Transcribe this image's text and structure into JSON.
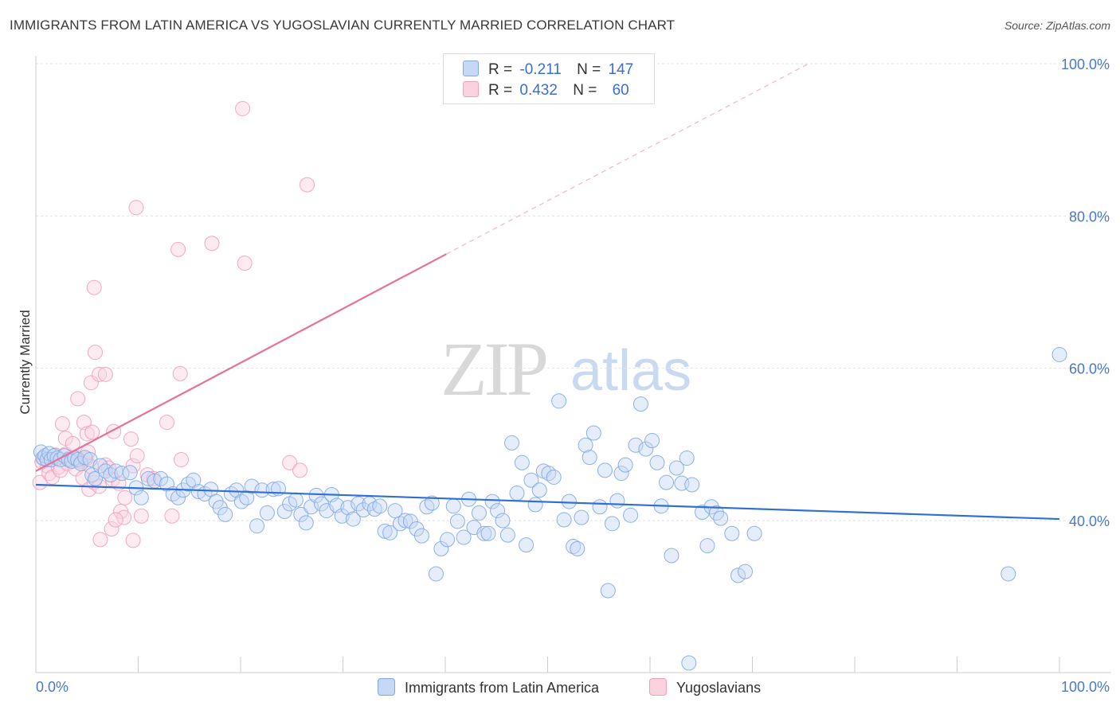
{
  "title": "IMMIGRANTS FROM LATIN AMERICA VS YUGOSLAVIAN CURRENTLY MARRIED CORRELATION CHART",
  "source": "Source: ZipAtlas.com",
  "watermark": {
    "zip": "ZIP",
    "atlas": "atlas"
  },
  "legend": {
    "r_label": "R =",
    "n_label": "N =",
    "rows": [
      {
        "name": "Immigrants from Latin America",
        "r": "-0.211",
        "n": "147",
        "color": "#7fa8e6"
      },
      {
        "name": "Yugoslavians",
        "r": "0.432",
        "n": "60",
        "color": "#f2a0b8"
      }
    ]
  },
  "bottom_legend": [
    "Immigrants from Latin America",
    "Yugoslavians"
  ],
  "chart_data": {
    "type": "scatter",
    "title": "IMMIGRANTS FROM LATIN AMERICA VS YUGOSLAVIAN CURRENTLY MARRIED CORRELATION CHART",
    "xlabel": "",
    "ylabel": "Currently Married",
    "xlim": [
      0,
      100
    ],
    "ylim": [
      20,
      102
    ],
    "x_tick_labels": [
      "0.0%",
      "100.0%"
    ],
    "y_ticks": [
      40,
      60,
      80,
      100
    ],
    "y_tick_labels": [
      "40.0%",
      "60.0%",
      "80.0%",
      "100.0%"
    ],
    "grid": true,
    "legend_position": "top-center",
    "colors": {
      "blue": "#7fa8e6",
      "blue_line": "#2f6fd6",
      "pink": "#f2a0b8",
      "pink_line": "#e8709a"
    },
    "series": [
      {
        "name": "Immigrants from Latin America",
        "color": "#7fa8e6",
        "trend": {
          "x0": 0,
          "y0": 44.7,
          "x1": 100,
          "y1": 40.2
        },
        "points": [
          [
            0.5,
            49
          ],
          [
            0.7,
            48.2
          ],
          [
            0.9,
            48.5
          ],
          [
            1.1,
            48
          ],
          [
            1.3,
            48.8
          ],
          [
            1.5,
            48
          ],
          [
            1.8,
            48.5
          ],
          [
            2.1,
            48.2
          ],
          [
            2.4,
            48
          ],
          [
            2.8,
            48.5
          ],
          [
            3.2,
            48
          ],
          [
            3.5,
            47.8
          ],
          [
            3.8,
            48.2
          ],
          [
            4.1,
            48
          ],
          [
            4.4,
            47.5
          ],
          [
            4.8,
            48.3
          ],
          [
            5.3,
            48
          ],
          [
            5.5,
            46
          ],
          [
            5.8,
            45.5
          ],
          [
            6.3,
            47.2
          ],
          [
            6.8,
            46.5
          ],
          [
            7.3,
            46
          ],
          [
            7.8,
            46.5
          ],
          [
            8.4,
            46.2
          ],
          [
            9.2,
            46.3
          ],
          [
            9.8,
            44.3
          ],
          [
            10.3,
            43
          ],
          [
            11,
            45.5
          ],
          [
            11.6,
            45.2
          ],
          [
            12.2,
            45.5
          ],
          [
            12.8,
            44.8
          ],
          [
            13.4,
            43.5
          ],
          [
            13.9,
            43
          ],
          [
            14.4,
            44
          ],
          [
            14.9,
            44.8
          ],
          [
            15.4,
            45.3
          ],
          [
            15.9,
            43.8
          ],
          [
            16.5,
            43.5
          ],
          [
            17.1,
            44.1
          ],
          [
            17.6,
            42.5
          ],
          [
            18,
            41.7
          ],
          [
            18.5,
            40.8
          ],
          [
            19.1,
            43.5
          ],
          [
            19.6,
            44
          ],
          [
            20.1,
            42.5
          ],
          [
            20.6,
            43
          ],
          [
            21.1,
            44.5
          ],
          [
            21.6,
            39.3
          ],
          [
            22.1,
            44
          ],
          [
            22.6,
            41
          ],
          [
            23.2,
            44.1
          ],
          [
            23.7,
            44.2
          ],
          [
            24.3,
            41.2
          ],
          [
            24.8,
            42.2
          ],
          [
            25.4,
            42.7
          ],
          [
            25.9,
            40.8
          ],
          [
            26.4,
            39.7
          ],
          [
            26.9,
            41.8
          ],
          [
            27.4,
            43.3
          ],
          [
            27.9,
            42.2
          ],
          [
            28.4,
            41.3
          ],
          [
            28.9,
            43.4
          ],
          [
            29.4,
            42
          ],
          [
            29.9,
            40.6
          ],
          [
            30.5,
            41.7
          ],
          [
            31,
            40.2
          ],
          [
            31.5,
            42.2
          ],
          [
            32,
            41.4
          ],
          [
            32.6,
            42.2
          ],
          [
            33.1,
            41.5
          ],
          [
            33.6,
            41.9
          ],
          [
            34.1,
            38.6
          ],
          [
            34.6,
            38.4
          ],
          [
            35.1,
            41.3
          ],
          [
            35.6,
            39.6
          ],
          [
            36.1,
            40
          ],
          [
            36.6,
            39.9
          ],
          [
            37.2,
            38.9
          ],
          [
            37.7,
            38
          ],
          [
            38.2,
            41.8
          ],
          [
            38.7,
            42.3
          ],
          [
            39.1,
            33
          ],
          [
            39.6,
            36.3
          ],
          [
            40.2,
            37.5
          ],
          [
            40.8,
            41.9
          ],
          [
            41.2,
            39.9
          ],
          [
            41.8,
            37.8
          ],
          [
            42.3,
            42.8
          ],
          [
            42.8,
            39.1
          ],
          [
            43.3,
            41
          ],
          [
            43.8,
            38.3
          ],
          [
            44.2,
            38.3
          ],
          [
            44.6,
            42.5
          ],
          [
            45.1,
            41.3
          ],
          [
            45.6,
            40
          ],
          [
            46.1,
            38.1
          ],
          [
            46.5,
            50.2
          ],
          [
            47,
            43.6
          ],
          [
            47.5,
            47.6
          ],
          [
            47.9,
            36.8
          ],
          [
            48.4,
            45.3
          ],
          [
            48.8,
            42.1
          ],
          [
            49.2,
            44
          ],
          [
            49.6,
            46.5
          ],
          [
            50.1,
            46.2
          ],
          [
            50.6,
            45.7
          ],
          [
            51.1,
            55.7
          ],
          [
            51.6,
            40.1
          ],
          [
            52.1,
            42.5
          ],
          [
            52.5,
            36.6
          ],
          [
            52.9,
            36.3
          ],
          [
            53.3,
            40.4
          ],
          [
            53.7,
            49.9
          ],
          [
            54.1,
            48.3
          ],
          [
            54.5,
            51.5
          ],
          [
            55.1,
            41.8
          ],
          [
            55.6,
            46.6
          ],
          [
            55.9,
            30.8
          ],
          [
            56.3,
            39.6
          ],
          [
            56.8,
            42.6
          ],
          [
            57.2,
            46.2
          ],
          [
            57.6,
            47.3
          ],
          [
            58.1,
            40.7
          ],
          [
            58.6,
            49.9
          ],
          [
            59.1,
            55.3
          ],
          [
            59.6,
            49.4
          ],
          [
            60.2,
            50.5
          ],
          [
            60.7,
            47.6
          ],
          [
            61.1,
            41.9
          ],
          [
            61.6,
            45
          ],
          [
            62.1,
            35.4
          ],
          [
            62.6,
            46.9
          ],
          [
            63.1,
            44.9
          ],
          [
            63.6,
            48.2
          ],
          [
            64.1,
            44.7
          ],
          [
            65.1,
            41.1
          ],
          [
            65.6,
            36.7
          ],
          [
            66,
            41.8
          ],
          [
            66.5,
            41
          ],
          [
            66.9,
            40.3
          ],
          [
            68,
            38.3
          ],
          [
            68.6,
            32.8
          ],
          [
            69.3,
            33.3
          ],
          [
            70.2,
            38.3
          ],
          [
            95,
            33
          ],
          [
            100,
            61.8
          ],
          [
            63.8,
            21.3
          ]
        ]
      },
      {
        "name": "Yugoslavians",
        "color": "#f2a0b8",
        "trend": {
          "x0": 0,
          "y0": 46.5,
          "x1": 40.1,
          "y1": 75,
          "x_dash_end": 75.5,
          "y_dash_end": 100
        },
        "points": [
          [
            0.4,
            45
          ],
          [
            0.6,
            47.7
          ],
          [
            0.8,
            48.1
          ],
          [
            1.1,
            47.2
          ],
          [
            1.3,
            46.2
          ],
          [
            1.6,
            45.7
          ],
          [
            1.9,
            48.6
          ],
          [
            2.2,
            47
          ],
          [
            2.4,
            46.6
          ],
          [
            2.6,
            52.7
          ],
          [
            2.9,
            48.7
          ],
          [
            3.1,
            47.5
          ],
          [
            2.9,
            50.8
          ],
          [
            3.3,
            48.2
          ],
          [
            3.6,
            50.1
          ],
          [
            3.9,
            46.8
          ],
          [
            4.1,
            48.2
          ],
          [
            4.4,
            47.8
          ],
          [
            4.6,
            45.6
          ],
          [
            4.9,
            48.1
          ],
          [
            5.1,
            49
          ],
          [
            5.4,
            47.1
          ],
          [
            5.2,
            44.1
          ],
          [
            5.7,
            45
          ],
          [
            6.2,
            44.5
          ],
          [
            6.8,
            47.3
          ],
          [
            7.1,
            46.9
          ],
          [
            7.5,
            45.4
          ],
          [
            8.1,
            44.9
          ],
          [
            8.7,
            43
          ],
          [
            8.3,
            41.2
          ],
          [
            8.6,
            40.4
          ],
          [
            9.5,
            47.2
          ],
          [
            9.9,
            48.5
          ],
          [
            10.3,
            40.6
          ],
          [
            10.9,
            46
          ],
          [
            11.5,
            45.5
          ],
          [
            14.2,
            48
          ],
          [
            4.1,
            56
          ],
          [
            4.7,
            52.9
          ],
          [
            5.0,
            51.4
          ],
          [
            5.5,
            51.6
          ],
          [
            5.4,
            58.1
          ],
          [
            6.2,
            59.2
          ],
          [
            6.8,
            59.2
          ],
          [
            5.8,
            62.1
          ],
          [
            7.6,
            51.7
          ],
          [
            9.3,
            50.7
          ],
          [
            12.8,
            52.9
          ],
          [
            14.1,
            59.3
          ],
          [
            13.9,
            75.6
          ],
          [
            17.2,
            76.4
          ],
          [
            20.4,
            73.8
          ],
          [
            24.8,
            47.6
          ],
          [
            25.8,
            46.6
          ],
          [
            26.5,
            84.1
          ],
          [
            5.7,
            70.6
          ],
          [
            9.8,
            81.1
          ],
          [
            20.2,
            94.1
          ],
          [
            13.3,
            40.6
          ],
          [
            6.3,
            37.5
          ],
          [
            7.4,
            38.9
          ],
          [
            7.8,
            40.1
          ],
          [
            9.5,
            37.4
          ]
        ]
      }
    ]
  }
}
